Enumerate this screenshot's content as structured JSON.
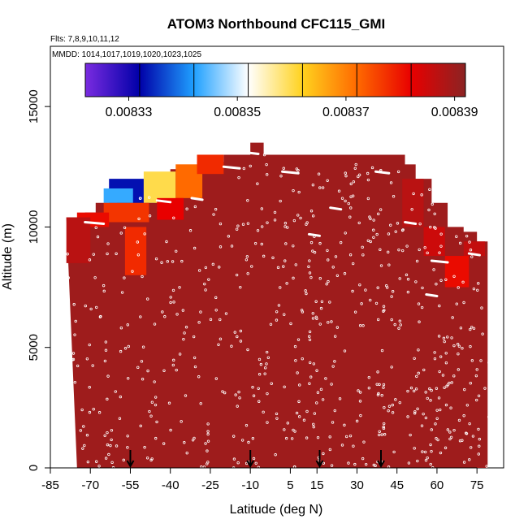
{
  "chart_data": {
    "type": "heatmap",
    "title": "ATOM3 Northbound CFC115_GMI",
    "flights_note": "Flts: 7,8,9,10,11,12",
    "dates_note": "MMDD: 1014,1017,1019,1020,1023,1025",
    "xlabel": "Latitude (deg N)",
    "ylabel": "Altitude (m)",
    "xlim": [
      -85,
      85
    ],
    "ylim": [
      0,
      17500
    ],
    "x_ticks": [
      -85,
      -70,
      -55,
      -40,
      -25,
      -10,
      5,
      15,
      30,
      45,
      60,
      75
    ],
    "y_ticks": [
      0,
      5000,
      10000,
      15000
    ],
    "colorbar": {
      "min": 0.008322,
      "max": 0.008392,
      "tick_values": [
        0.00833,
        0.00835,
        0.00837,
        0.00839
      ],
      "tick_labels": [
        "0.00833",
        "0.00835",
        "0.00837",
        "0.00839"
      ],
      "colors": [
        "#7a2be0",
        "#0000a8",
        "#1fa0ff",
        "#ffffff",
        "#ffd21e",
        "#ff6a00",
        "#e80000",
        "#8b2323"
      ]
    },
    "background_value": 0.00839,
    "domain_top_profile": [
      {
        "lat": -79,
        "top": 10400
      },
      {
        "lat": -72,
        "top": 10600
      },
      {
        "lat": -68,
        "top": 11000
      },
      {
        "lat": -60,
        "top": 11300
      },
      {
        "lat": -55,
        "top": 11600
      },
      {
        "lat": -48,
        "top": 12000
      },
      {
        "lat": -40,
        "top": 12400
      },
      {
        "lat": -30,
        "top": 12700
      },
      {
        "lat": -20,
        "top": 13000
      },
      {
        "lat": -12,
        "top": 13000
      },
      {
        "lat": -10,
        "top": 13500
      },
      {
        "lat": -5,
        "top": 13000
      },
      {
        "lat": 20,
        "top": 13000
      },
      {
        "lat": 44,
        "top": 13000
      },
      {
        "lat": 48,
        "top": 12600
      },
      {
        "lat": 52,
        "top": 12000
      },
      {
        "lat": 58,
        "top": 11000
      },
      {
        "lat": 64,
        "top": 10000
      },
      {
        "lat": 70,
        "top": 9800
      },
      {
        "lat": 75,
        "top": 9400
      },
      {
        "lat": 79,
        "top": 9100
      }
    ],
    "domain_left_lat": [
      {
        "alt": 10400,
        "lat": -79
      },
      {
        "alt": 0,
        "lat": -75
      }
    ],
    "domain_right_lat": [
      {
        "alt": 9100,
        "lat": 79
      },
      {
        "alt": 0,
        "lat": 79
      }
    ],
    "anomalies": [
      {
        "lat0": -63,
        "lat1": -46,
        "alt0": 11000,
        "alt1": 12000,
        "value": 0.008333
      },
      {
        "lat0": -65,
        "lat1": -54,
        "alt0": 11000,
        "alt1": 11600,
        "value": 0.008343
      },
      {
        "lat0": -50,
        "lat1": -38,
        "alt0": 11000,
        "alt1": 12300,
        "value": 0.00836
      },
      {
        "lat0": -38,
        "lat1": -28,
        "alt0": 11200,
        "alt1": 12600,
        "value": 0.008372
      },
      {
        "lat0": -30,
        "lat1": -20,
        "alt0": 12200,
        "alt1": 13000,
        "value": 0.008378
      },
      {
        "lat0": -65,
        "lat1": -48,
        "alt0": 10200,
        "alt1": 11000,
        "value": 0.008377
      },
      {
        "lat0": -75,
        "lat1": -63,
        "alt0": 10000,
        "alt1": 10600,
        "value": 0.008381
      },
      {
        "lat0": -57,
        "lat1": -49,
        "alt0": 8000,
        "alt1": 10000,
        "value": 0.008378
      },
      {
        "lat0": -45,
        "lat1": -35,
        "alt0": 10300,
        "alt1": 11200,
        "value": 0.008382
      },
      {
        "lat0": 63,
        "lat1": 72,
        "alt0": 7500,
        "alt1": 8800,
        "value": 0.008381
      },
      {
        "lat0": 55,
        "lat1": 63,
        "alt0": 8800,
        "alt1": 10000,
        "value": 0.008385
      },
      {
        "lat0": 70,
        "lat1": 78,
        "alt0": 8800,
        "alt1": 9400,
        "value": 0.008386
      },
      {
        "lat0": 47,
        "lat1": 55,
        "alt0": 10000,
        "alt1": 12000,
        "value": 0.008387
      },
      {
        "lat0": -79,
        "lat1": -70,
        "alt0": 8500,
        "alt1": 10400,
        "value": 0.008387
      }
    ],
    "cruise_legs": [
      {
        "lat0": -72,
        "lat1": -65,
        "alt": 10200
      },
      {
        "lat0": -45,
        "lat1": -40,
        "alt": 11100
      },
      {
        "lat0": -32,
        "lat1": -28,
        "alt": 11200
      },
      {
        "lat0": -20,
        "lat1": -14,
        "alt": 12500
      },
      {
        "lat0": -12,
        "lat1": -7,
        "alt": 13100
      },
      {
        "lat0": 2,
        "lat1": 8,
        "alt": 12300
      },
      {
        "lat0": 12,
        "lat1": 16,
        "alt": 9700
      },
      {
        "lat0": 20,
        "lat1": 24,
        "alt": 10800
      },
      {
        "lat0": 37,
        "lat1": 42,
        "alt": 12300
      },
      {
        "lat0": 48,
        "lat1": 52,
        "alt": 10200
      },
      {
        "lat0": 56,
        "lat1": 60,
        "alt": 7200
      },
      {
        "lat0": 58,
        "lat1": 64,
        "alt": 8600
      },
      {
        "lat0": 72,
        "lat1": 76,
        "alt": 8900
      }
    ],
    "profile_lats": [
      -79,
      -75,
      -70,
      -66,
      -62,
      -58,
      -52,
      -48,
      -45,
      -41,
      -38,
      -33,
      -29,
      -25,
      -21,
      -16,
      -13,
      -9,
      -6,
      -2,
      2,
      5,
      8,
      10,
      12,
      14,
      16,
      18,
      21,
      24,
      27,
      30,
      33,
      36,
      38,
      40,
      42,
      45,
      48,
      51,
      54,
      56,
      58,
      60,
      62,
      64,
      66,
      69,
      72,
      75,
      78
    ],
    "arrow_lats": [
      -55,
      -10,
      16,
      39
    ]
  }
}
